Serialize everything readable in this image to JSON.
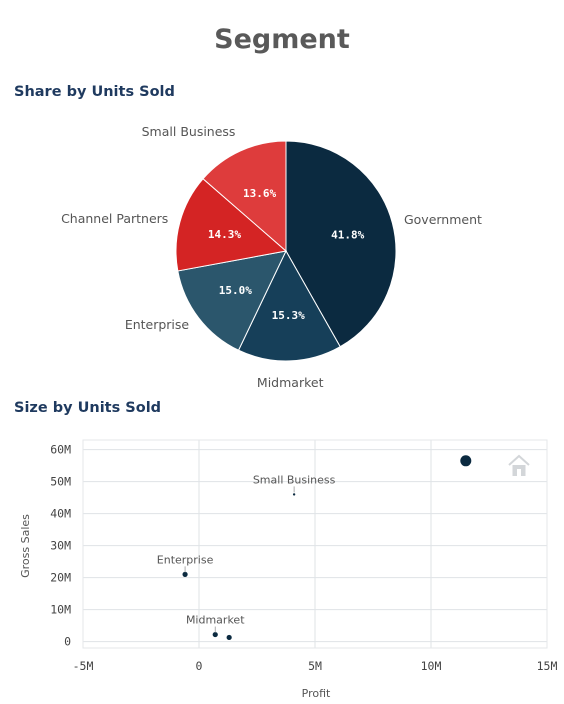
{
  "page": {
    "title": "Segment"
  },
  "colors": {
    "government": "#0b2a40",
    "midmarket": "#163f59",
    "enterprise": "#2b566c",
    "channel_partners": "#d42424",
    "small_business": "#de3c3c",
    "scatter_point": "#0b2a40",
    "grid": "#dfe3e6"
  },
  "chart_data": [
    {
      "type": "pie",
      "title": "Share by Units Sold",
      "slices": [
        {
          "name": "Government",
          "value": 41.8,
          "label": "41.8%",
          "color": "#0b2a40"
        },
        {
          "name": "Midmarket",
          "value": 15.3,
          "label": "15.3%",
          "color": "#163f59"
        },
        {
          "name": "Enterprise",
          "value": 15.0,
          "label": "15.0%",
          "color": "#2b566c"
        },
        {
          "name": "Channel Partners",
          "value": 14.3,
          "label": "14.3%",
          "color": "#d42424"
        },
        {
          "name": "Small Business",
          "value": 13.6,
          "label": "13.6%",
          "color": "#de3c3c"
        }
      ]
    },
    {
      "type": "scatter",
      "title": "Size by Units Sold",
      "xlabel": "Profit",
      "ylabel": "Gross Sales",
      "xlim": [
        -5000000,
        15000000
      ],
      "ylim": [
        -2000000,
        63000000
      ],
      "x_ticks": [
        -5000000,
        0,
        5000000,
        10000000,
        15000000
      ],
      "x_tick_labels": [
        "-5M",
        "0",
        "5M",
        "10M",
        "15M"
      ],
      "y_ticks": [
        0,
        10000000,
        20000000,
        30000000,
        40000000,
        50000000,
        60000000
      ],
      "y_tick_labels": [
        "0",
        "10M",
        "20M",
        "30M",
        "40M",
        "50M",
        "60M"
      ],
      "grid": true,
      "points": [
        {
          "name": "Government",
          "x": 11500000,
          "y": 56500000,
          "size": "large",
          "label": ""
        },
        {
          "name": "Small Business",
          "x": 4100000,
          "y": 46000000,
          "size": "tiny",
          "label": "Small Business"
        },
        {
          "name": "Enterprise",
          "x": -600000,
          "y": 21000000,
          "size": "small",
          "label": "Enterprise"
        },
        {
          "name": "Midmarket",
          "x": 700000,
          "y": 2200000,
          "size": "small",
          "label": "Midmarket"
        },
        {
          "name": "Channel Partners",
          "x": 1300000,
          "y": 1300000,
          "size": "small",
          "label": ""
        }
      ],
      "home_icon": "home-icon"
    }
  ]
}
